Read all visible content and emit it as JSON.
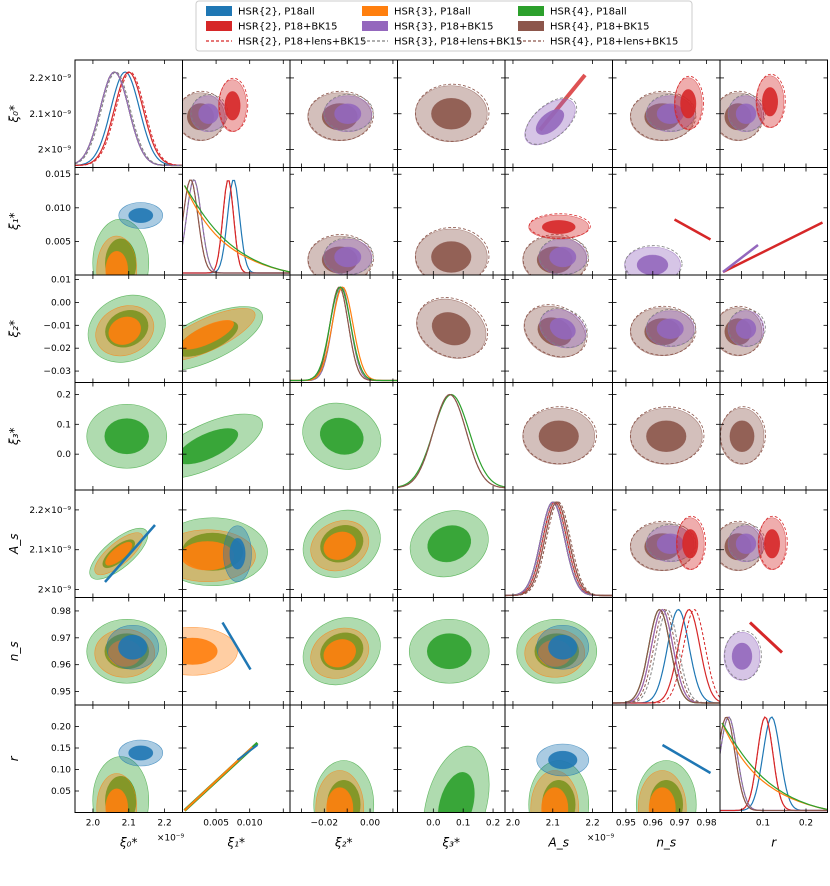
{
  "chart_data": {
    "type": "corner-plot",
    "title": "",
    "parameters": [
      {
        "key": "xi0",
        "label": "ξ₀*",
        "tick_values": [
          2.0,
          2.1,
          2.2
        ],
        "tick_labels_x": [
          "2.0",
          "2.1",
          "2.2"
        ],
        "tick_labels_y": [
          "2×10⁻⁹",
          "2.1×10⁻⁹",
          "2.2×10⁻⁹"
        ],
        "range": [
          1.95,
          2.25
        ],
        "offset": "×10⁻⁹"
      },
      {
        "key": "xi1",
        "label": "ξ₁*",
        "tick_values": [
          0.005,
          0.01,
          0.015
        ],
        "tick_labels_x": [
          "0.005",
          "0.010",
          ""
        ],
        "tick_labels_y": [
          "0.005",
          "0.010",
          "0.015"
        ],
        "range": [
          0.0,
          0.016
        ]
      },
      {
        "key": "xi2",
        "label": "ξ₂*",
        "tick_values": [
          -0.03,
          -0.02,
          -0.01,
          0.0,
          0.01
        ],
        "tick_labels_x": [
          "",
          "−0.02",
          "",
          "0.00",
          ""
        ],
        "tick_labels_y": [
          "−0.03",
          "−0.02",
          "−0.01",
          "0.00",
          "0.01"
        ],
        "range": [
          -0.035,
          0.012
        ]
      },
      {
        "key": "xi3",
        "label": "ξ₃*",
        "tick_values": [
          0.0,
          0.1,
          0.2
        ],
        "tick_labels_x": [
          "0.0",
          "0.1",
          "0.2"
        ],
        "tick_labels_y": [
          "0.0",
          "0.1",
          "0.2"
        ],
        "range": [
          -0.12,
          0.24
        ]
      },
      {
        "key": "As",
        "label": "A_s",
        "tick_values": [
          2.0,
          2.1,
          2.2
        ],
        "tick_labels_x": [
          "2.0",
          "2.1",
          "2.2"
        ],
        "tick_labels_y": [
          "2×10⁻⁹",
          "2.1×10⁻⁹",
          "2.2×10⁻⁹"
        ],
        "range": [
          1.98,
          2.25
        ],
        "offset": "×10⁻⁹"
      },
      {
        "key": "ns",
        "label": "n_s",
        "tick_values": [
          0.95,
          0.96,
          0.97,
          0.98
        ],
        "tick_labels_x": [
          "0.95",
          "0.96",
          "0.97",
          "0.98"
        ],
        "tick_labels_y": [
          "0.95",
          "0.96",
          "0.97",
          "0.98"
        ],
        "range": [
          0.945,
          0.985
        ]
      },
      {
        "key": "r",
        "label": "r",
        "tick_values": [
          0.05,
          0.1,
          0.15,
          0.2
        ],
        "tick_labels_x": [
          "",
          "0.1",
          "",
          "0.2"
        ],
        "tick_labels_y": [
          "0.05",
          "0.10",
          "0.15",
          "0.20"
        ],
        "range": [
          0.0,
          0.25
        ]
      }
    ],
    "axis_offset_label": "×10⁻⁹",
    "legend": {
      "placement": "top-center",
      "entries": [
        {
          "label": "HSR{2}, P18all",
          "color": "#1f77b4",
          "style": "filled"
        },
        {
          "label": "HSR{2}, P18+BK15",
          "color": "#d62728",
          "style": "filled"
        },
        {
          "label": "HSR{2}, P18+lens+BK15",
          "color": "#d62728",
          "style": "dashed"
        },
        {
          "label": "HSR{3}, P18all",
          "color": "#ff7f0e",
          "style": "filled"
        },
        {
          "label": "HSR{3}, P18+BK15",
          "color": "#9467bd",
          "style": "filled"
        },
        {
          "label": "HSR{3}, P18+lens+BK15",
          "color": "#7f7f7f",
          "style": "dashed"
        },
        {
          "label": "HSR{4}, P18all",
          "color": "#2ca02c",
          "style": "filled"
        },
        {
          "label": "HSR{4}, P18+BK15",
          "color": "#8c564b",
          "style": "filled"
        },
        {
          "label": "HSR{4}, P18+lens+BK15",
          "color": "#8c564b",
          "style": "dashed"
        }
      ]
    },
    "series_colors": {
      "blue": "#1f77b4",
      "orange": "#ff7f0e",
      "green": "#2ca02c",
      "red": "#d62728",
      "purple": "#9467bd",
      "brown": "#8c564b",
      "gray": "#7f7f7f"
    },
    "marginals_1d": [
      {
        "param": "xi0",
        "peaks": [
          {
            "series": "blue",
            "mu": 2.09,
            "sigma": 0.04
          },
          {
            "series": "orange",
            "mu": 2.06,
            "sigma": 0.04
          },
          {
            "series": "green",
            "mu": 2.06,
            "sigma": 0.04
          },
          {
            "series": "red",
            "mu": 2.1,
            "sigma": 0.04
          },
          {
            "series": "purple",
            "mu": 2.06,
            "sigma": 0.04
          }
        ]
      },
      {
        "param": "xi1",
        "peaks": [
          {
            "series": "blue",
            "mu": 0.0076,
            "sigma": 0.0009
          },
          {
            "series": "red",
            "mu": 0.0068,
            "sigma": 0.0008
          },
          {
            "series": "purple",
            "mu": 0.0017,
            "sigma": 0.0011
          },
          {
            "series": "brown",
            "mu": 0.0012,
            "sigma": 0.0011
          }
        ]
      },
      {
        "param": "xi2",
        "peaks": [
          {
            "series": "purple",
            "mu": -0.0125,
            "sigma": 0.004
          },
          {
            "series": "brown",
            "mu": -0.0135,
            "sigma": 0.004
          },
          {
            "series": "orange",
            "mu": -0.012,
            "sigma": 0.0045
          },
          {
            "series": "green",
            "mu": -0.013,
            "sigma": 0.0045
          }
        ]
      },
      {
        "param": "xi3",
        "peaks": [
          {
            "series": "green",
            "mu": 0.06,
            "sigma": 0.06
          },
          {
            "series": "brown",
            "mu": 0.055,
            "sigma": 0.055
          }
        ]
      },
      {
        "param": "As",
        "peaks": [
          {
            "series": "blue",
            "mu": 2.1,
            "sigma": 0.03
          },
          {
            "series": "orange",
            "mu": 2.1,
            "sigma": 0.03
          },
          {
            "series": "green",
            "mu": 2.1,
            "sigma": 0.03
          },
          {
            "series": "red",
            "mu": 2.105,
            "sigma": 0.03
          },
          {
            "series": "purple",
            "mu": 2.1,
            "sigma": 0.03
          },
          {
            "series": "brown",
            "mu": 2.11,
            "sigma": 0.03
          }
        ]
      },
      {
        "param": "ns",
        "peaks": [
          {
            "series": "blue",
            "mu": 0.9695,
            "sigma": 0.004
          },
          {
            "series": "orange",
            "mu": 0.9635,
            "sigma": 0.004
          },
          {
            "series": "green",
            "mu": 0.9625,
            "sigma": 0.004
          },
          {
            "series": "red",
            "mu": 0.9735,
            "sigma": 0.004
          },
          {
            "series": "purple",
            "mu": 0.9635,
            "sigma": 0.004
          },
          {
            "series": "brown",
            "mu": 0.9625,
            "sigma": 0.004
          }
        ]
      },
      {
        "param": "r",
        "peaks": [
          {
            "series": "blue",
            "mu": 0.12,
            "sigma": 0.02
          },
          {
            "series": "red",
            "mu": 0.105,
            "sigma": 0.018
          },
          {
            "series": "purple",
            "mu": 0.02,
            "sigma": 0.02
          },
          {
            "series": "brown",
            "mu": 0.015,
            "sigma": 0.02
          }
        ]
      }
    ]
  }
}
